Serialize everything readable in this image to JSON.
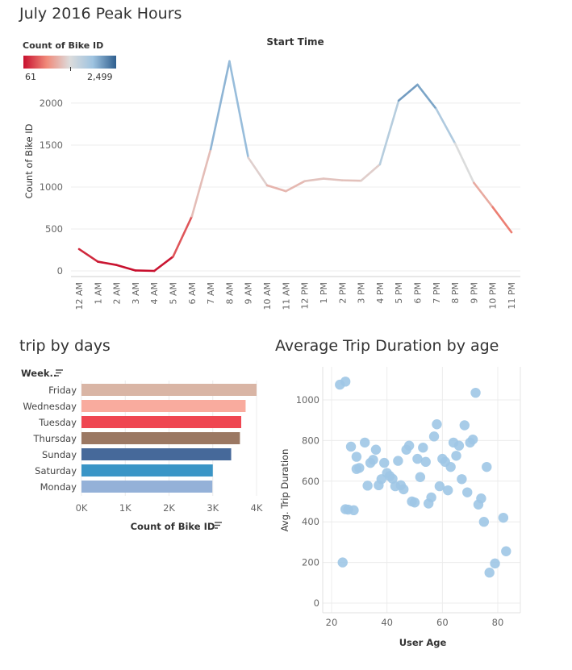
{
  "charts": {
    "peak": {
      "title": "July 2016 Peak Hours",
      "top_label": "Start Time"
    },
    "days": {
      "title": "trip by days",
      "header": "Week.."
    },
    "scatter": {
      "title": "Average Trip Duration by age"
    }
  },
  "legend": {
    "title": "Count of Bike ID",
    "min_label": "61",
    "max_label": "2,499",
    "colors": [
      "#c8102e",
      "#f08a7a",
      "#dcdcdc",
      "#9ec3e0",
      "#2f5f8f"
    ]
  },
  "chart_data": [
    {
      "type": "line",
      "title": "July 2016 Peak Hours",
      "xlabel": "Start Time",
      "ylabel": "Count of Bike ID",
      "x": [
        "12 AM",
        "1 AM",
        "2 AM",
        "3 AM",
        "4 AM",
        "5 AM",
        "6 AM",
        "7 AM",
        "8 AM",
        "9 AM",
        "10 AM",
        "11 AM",
        "12 PM",
        "1 PM",
        "2 PM",
        "3 PM",
        "4 PM",
        "5 PM",
        "6 PM",
        "7 PM",
        "8 PM",
        "9 PM",
        "10 PM",
        "11 PM"
      ],
      "values": [
        260,
        110,
        70,
        5,
        0,
        170,
        650,
        1450,
        2499,
        1350,
        1020,
        950,
        1070,
        1100,
        1080,
        1075,
        1270,
        2030,
        2220,
        1930,
        1520,
        1050,
        760,
        460
      ],
      "yticks": [
        0,
        500,
        1000,
        1500,
        2000
      ],
      "ylim": [
        0,
        2600
      ],
      "color_range": [
        61,
        2499
      ]
    },
    {
      "type": "bar",
      "orientation": "horizontal",
      "title": "trip by days",
      "xlabel": "Count of Bike ID",
      "ylabel": "Week..",
      "categories": [
        "Friday",
        "Wednesday",
        "Tuesday",
        "Thursday",
        "Sunday",
        "Saturday",
        "Monday"
      ],
      "values": [
        4000,
        3750,
        3650,
        3620,
        3420,
        3000,
        2990
      ],
      "colors": [
        "#d9b5a5",
        "#f9ab9e",
        "#ef4651",
        "#9b7863",
        "#46699a",
        "#3a95c6",
        "#94b1d8"
      ],
      "xticks": [
        "0K",
        "1K",
        "2K",
        "3K",
        "4K"
      ],
      "xtick_values": [
        0,
        1000,
        2000,
        3000,
        4000
      ],
      "xlim": [
        0,
        4150
      ]
    },
    {
      "type": "scatter",
      "title": "Average Trip Duration by age",
      "xlabel": "User Age",
      "ylabel": "Avg. Trip Duration",
      "xticks": [
        20,
        40,
        60,
        80
      ],
      "yticks": [
        0,
        200,
        400,
        600,
        800,
        1000
      ],
      "xlim": [
        18,
        86
      ],
      "ylim": [
        -30,
        1140
      ],
      "color": "#9ec6e6",
      "points": [
        [
          23,
          1075
        ],
        [
          25,
          1090
        ],
        [
          24,
          200
        ],
        [
          25,
          462
        ],
        [
          26,
          460
        ],
        [
          27,
          770
        ],
        [
          28,
          457
        ],
        [
          29,
          720
        ],
        [
          29,
          660
        ],
        [
          30,
          665
        ],
        [
          32,
          790
        ],
        [
          33,
          578
        ],
        [
          34,
          690
        ],
        [
          35,
          705
        ],
        [
          36,
          755
        ],
        [
          37,
          580
        ],
        [
          38,
          610
        ],
        [
          39,
          690
        ],
        [
          40,
          640
        ],
        [
          41,
          625
        ],
        [
          42,
          612
        ],
        [
          43,
          575
        ],
        [
          44,
          700
        ],
        [
          45,
          580
        ],
        [
          46,
          560
        ],
        [
          47,
          755
        ],
        [
          48,
          775
        ],
        [
          49,
          500
        ],
        [
          50,
          495
        ],
        [
          51,
          710
        ],
        [
          52,
          620
        ],
        [
          53,
          765
        ],
        [
          54,
          695
        ],
        [
          55,
          490
        ],
        [
          56,
          520
        ],
        [
          57,
          820
        ],
        [
          58,
          880
        ],
        [
          59,
          575
        ],
        [
          60,
          710
        ],
        [
          61,
          695
        ],
        [
          62,
          555
        ],
        [
          63,
          670
        ],
        [
          64,
          790
        ],
        [
          65,
          725
        ],
        [
          66,
          775
        ],
        [
          67,
          610
        ],
        [
          68,
          875
        ],
        [
          69,
          545
        ],
        [
          70,
          790
        ],
        [
          71,
          805
        ],
        [
          72,
          1035
        ],
        [
          73,
          485
        ],
        [
          74,
          515
        ],
        [
          75,
          400
        ],
        [
          76,
          670
        ],
        [
          77,
          150
        ],
        [
          79,
          195
        ],
        [
          82,
          420
        ],
        [
          83,
          255
        ]
      ]
    }
  ]
}
